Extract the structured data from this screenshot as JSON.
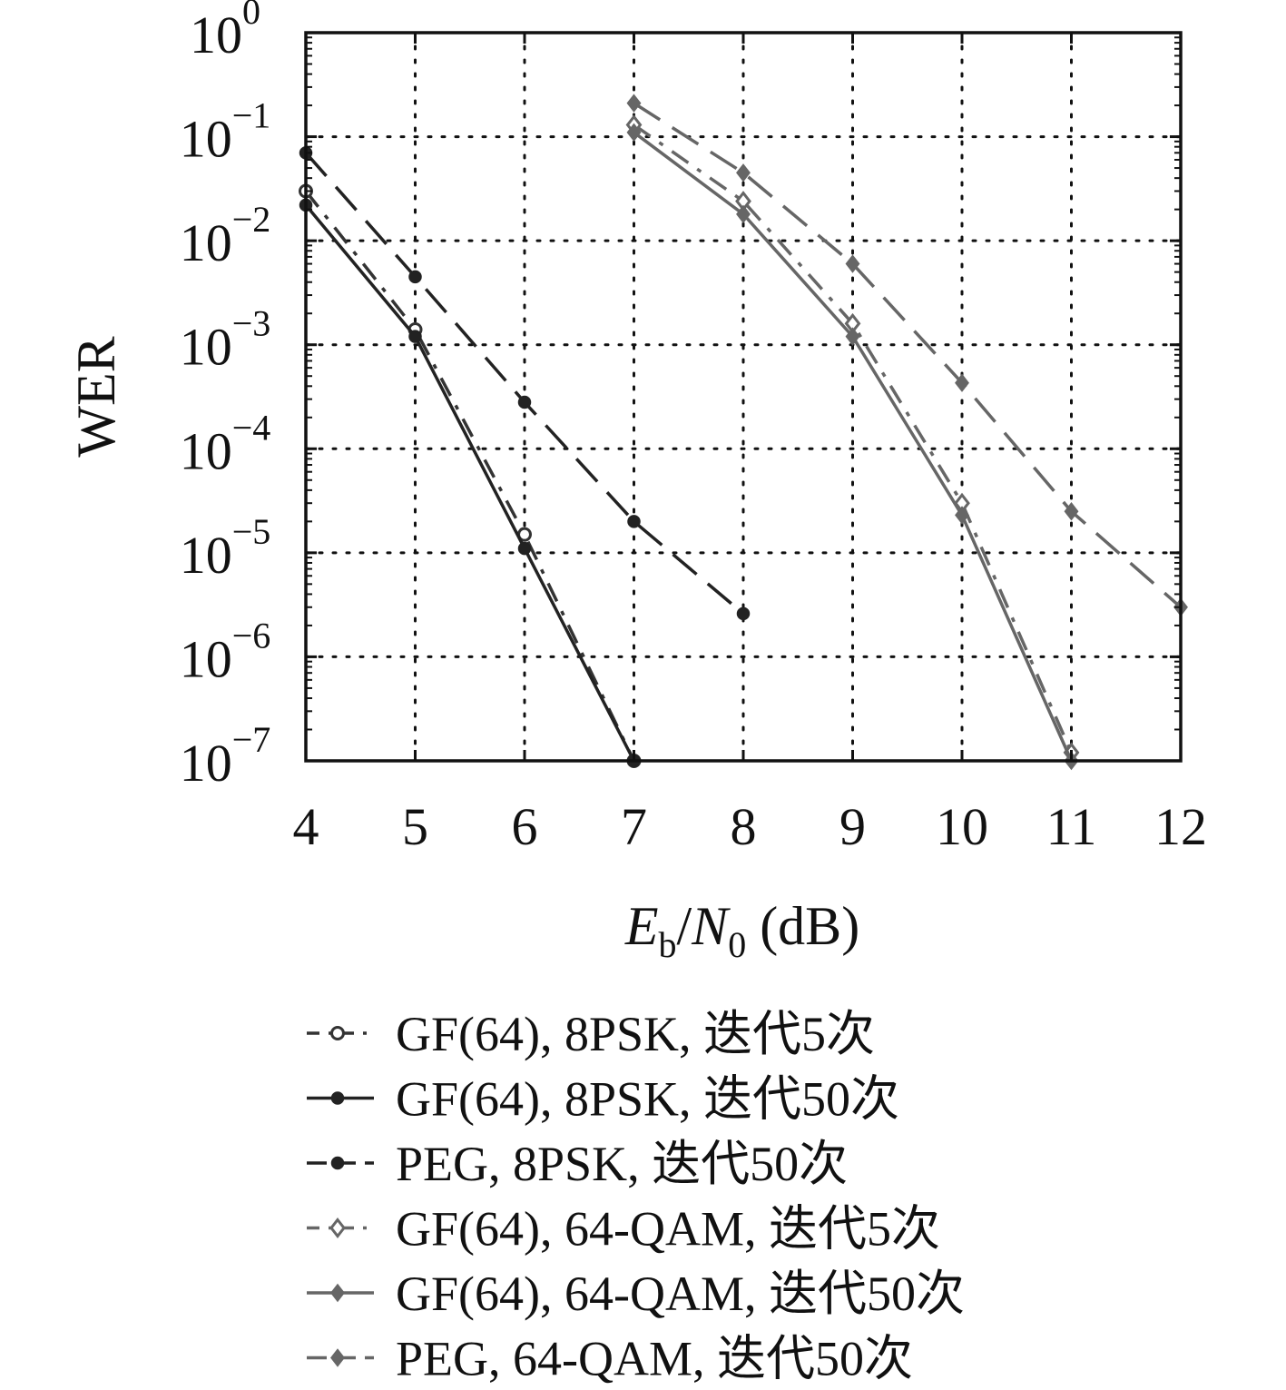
{
  "chart_data": {
    "type": "line",
    "title": "",
    "xlabel": "",
    "xlabel_parts": {
      "e": "E",
      "e_sub": "b",
      "slash": "/",
      "n": "N",
      "n_sub": "0",
      "unit": " (dB)"
    },
    "ylabel": "WER",
    "xlim": [
      4,
      12
    ],
    "ylim": [
      1e-07,
      1
    ],
    "yscale": "log",
    "grid": true,
    "legend_position": "bottom",
    "xticks": [
      "4",
      "5",
      "6",
      "7",
      "8",
      "9",
      "10",
      "11",
      "12"
    ],
    "yticks": [
      {
        "base": "10",
        "exp": "0"
      },
      {
        "base": "10",
        "exp": "−1"
      },
      {
        "base": "10",
        "exp": "−2"
      },
      {
        "base": "10",
        "exp": "−3"
      },
      {
        "base": "10",
        "exp": "−4"
      },
      {
        "base": "10",
        "exp": "−5"
      },
      {
        "base": "10",
        "exp": "−6"
      },
      {
        "base": "10",
        "exp": "−7"
      }
    ],
    "series": [
      {
        "name": "GF(64), 8PSK, 迭代5次",
        "color": "#333333",
        "marker": "circle-open",
        "dash": "22 12 5 12",
        "x": [
          4,
          5,
          6,
          7
        ],
        "y": [
          0.03,
          0.0014,
          1.5e-05,
          1e-07
        ]
      },
      {
        "name": "GF(64), 8PSK, 迭代50次",
        "color": "#222222",
        "marker": "circle",
        "dash": "",
        "x": [
          4,
          5,
          6,
          7
        ],
        "y": [
          0.022,
          0.0012,
          1.1e-05,
          1e-07
        ]
      },
      {
        "name": "PEG, 8PSK, 迭代50次",
        "color": "#222222",
        "marker": "circle",
        "dash": "34 16",
        "x": [
          4,
          5,
          6,
          7,
          8
        ],
        "y": [
          0.07,
          0.0045,
          0.00028,
          2e-05,
          2.6e-06
        ]
      },
      {
        "name": "GF(64), 64-QAM, 迭代5次",
        "color": "#666666",
        "marker": "diamond-open",
        "dash": "22 12 5 12",
        "x": [
          7,
          8,
          9,
          10,
          11
        ],
        "y": [
          0.13,
          0.024,
          0.0016,
          3e-05,
          1.2e-07
        ]
      },
      {
        "name": "GF(64), 64-QAM, 迭代50次",
        "color": "#666666",
        "marker": "diamond",
        "dash": "",
        "x": [
          7,
          8,
          9,
          10,
          11
        ],
        "y": [
          0.11,
          0.018,
          0.0012,
          2.3e-05,
          1e-07
        ]
      },
      {
        "name": "PEG, 64-QAM, 迭代50次",
        "color": "#666666",
        "marker": "diamond",
        "dash": "34 16",
        "x": [
          7,
          8,
          9,
          10,
          11,
          12
        ],
        "y": [
          0.21,
          0.045,
          0.006,
          0.00043,
          2.5e-05,
          3e-06
        ]
      }
    ]
  }
}
